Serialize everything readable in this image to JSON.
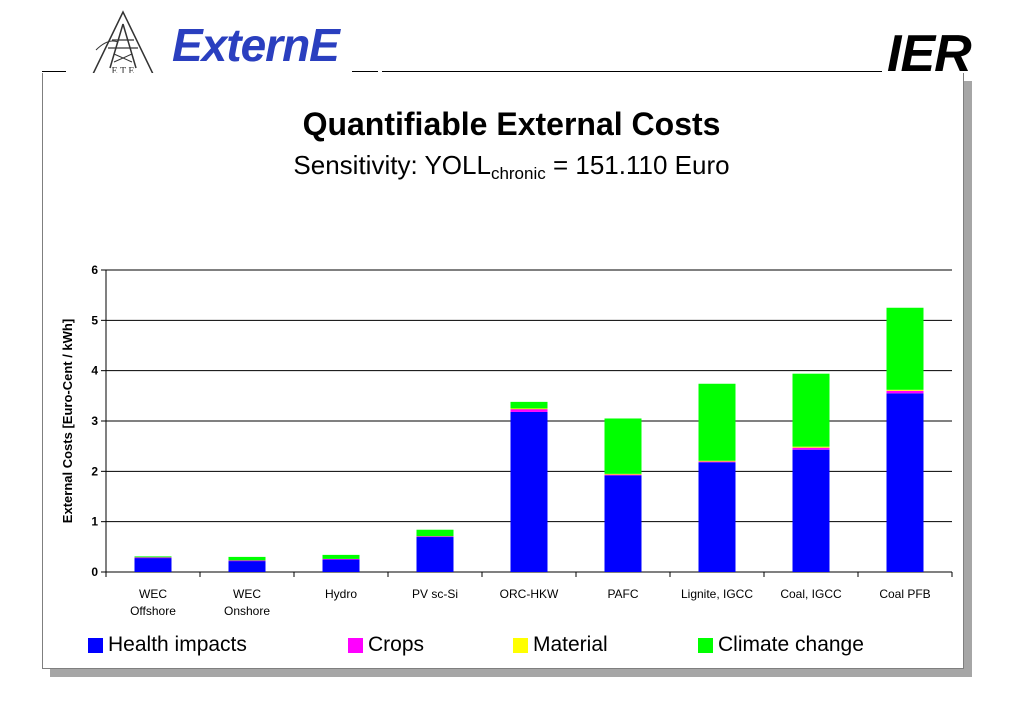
{
  "header": {
    "logo_text": "ExternE",
    "logo_tower_letters": "E T E",
    "ier_text": "IER"
  },
  "title": "Quantifiable External Costs",
  "subtitle": {
    "prefix": "Sensitivity: YOLL",
    "subscript": "chronic",
    "suffix": " = 151.110 Euro"
  },
  "colors": {
    "health": "#0000ff",
    "crops": "#ff00ff",
    "material": "#ffff00",
    "climate": "#00ff00"
  },
  "chart_data": {
    "type": "bar",
    "stacked": true,
    "ylabel": "External Costs [Euro-Cent / kWh]",
    "xlabel": "",
    "ylim": [
      0,
      6
    ],
    "yticks": [
      0,
      1,
      2,
      3,
      4,
      5,
      6
    ],
    "grid": true,
    "legend_position": "bottom",
    "categories": [
      [
        "WEC",
        "Offshore"
      ],
      [
        "WEC",
        "Onshore"
      ],
      [
        "Hydro"
      ],
      [
        "PV sc-Si"
      ],
      [
        "ORC-HKW"
      ],
      [
        "PAFC"
      ],
      [
        "Lignite, IGCC"
      ],
      [
        "Coal, IGCC"
      ],
      [
        "Coal PFB"
      ]
    ],
    "series": [
      {
        "name": "Health impacts",
        "color": "#0000ff",
        "values": [
          0.28,
          0.22,
          0.25,
          0.7,
          3.18,
          1.92,
          2.18,
          2.43,
          3.55
        ]
      },
      {
        "name": "Crops",
        "color": "#ff00ff",
        "values": [
          0.01,
          0.01,
          0.01,
          0.01,
          0.06,
          0.02,
          0.02,
          0.04,
          0.05
        ]
      },
      {
        "name": "Material",
        "color": "#ffff00",
        "values": [
          0.0,
          0.0,
          0.0,
          0.0,
          0.01,
          0.01,
          0.01,
          0.02,
          0.02
        ]
      },
      {
        "name": "Climate change",
        "color": "#00ff00",
        "values": [
          0.02,
          0.07,
          0.08,
          0.13,
          0.13,
          1.1,
          1.53,
          1.45,
          1.63
        ]
      }
    ]
  }
}
